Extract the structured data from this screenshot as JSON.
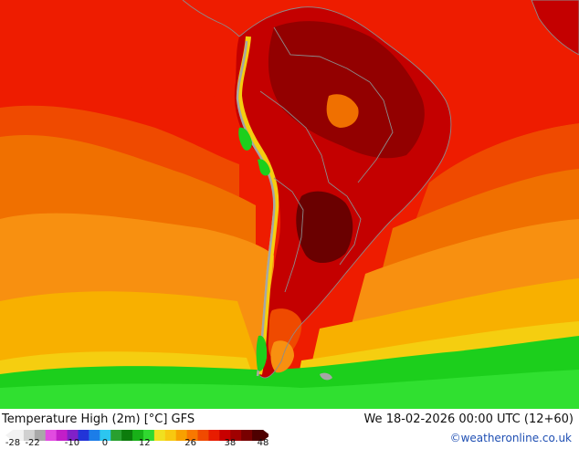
{
  "map": {
    "title": "Temperature High (2m) [°C] GFS",
    "datetime": "We 18-02-2026 00:00 UTC (12+60)",
    "credit": "©weatheronline.co.uk",
    "legend": {
      "tick_labels": [
        "-28",
        "-22",
        "-10",
        "0",
        "12",
        "26",
        "38",
        "48"
      ],
      "tick_values": [
        -28,
        -22,
        -10,
        0,
        12,
        26,
        38,
        48
      ],
      "range": [
        -28,
        48
      ],
      "colors": [
        "#f2f2f2",
        "#d0d0d0",
        "#a8a8a8",
        "#e24be0",
        "#c21ec8",
        "#8020c8",
        "#2234d8",
        "#1c7de8",
        "#2cc6f0",
        "#29a030",
        "#0c7c0c",
        "#18b018",
        "#30d830",
        "#f0e020",
        "#f8c810",
        "#f8a000",
        "#f87800",
        "#f04a00",
        "#e81c00",
        "#c80000",
        "#a00000",
        "#780000",
        "#4e0000"
      ]
    },
    "palette": {
      "sea_green": "#1ccf1c",
      "sea_green_light": "#30e030",
      "yellow": "#f5ce10",
      "orange_light": "#f8b000",
      "orange": "#f89010",
      "orange_deep": "#f07000",
      "red_orange": "#ef4a00",
      "red": "#ee1c00",
      "dark_red": "#c40000",
      "maroon": "#930000",
      "deep_maroon": "#6a0000",
      "andes_gray": "#a6a6a6",
      "border": "#8c8c8c",
      "credit_blue": "#1f4fb3"
    }
  }
}
